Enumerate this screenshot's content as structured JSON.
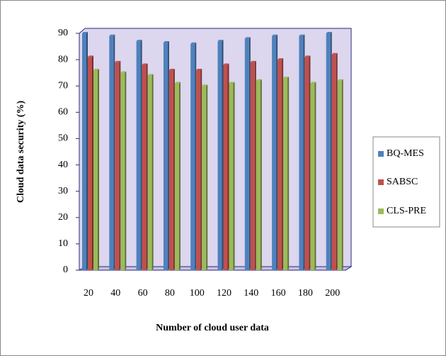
{
  "chart_data": {
    "type": "bar",
    "xlabel": "Number of cloud user data",
    "ylabel": "Cloud data security (%)",
    "categories": [
      "20",
      "40",
      "60",
      "80",
      "100",
      "120",
      "140",
      "160",
      "180",
      "200"
    ],
    "series": [
      {
        "name": "BQ-MES",
        "color": "#4f81bd",
        "values": [
          90,
          89,
          87,
          86.5,
          86,
          87,
          88,
          89,
          89,
          90
        ]
      },
      {
        "name": "SABSC",
        "color": "#c0504d",
        "values": [
          81,
          79,
          78,
          76,
          76,
          78,
          79,
          80,
          81,
          82
        ]
      },
      {
        "name": "CLS-PRE",
        "color": "#9bbb59",
        "values": [
          76,
          75,
          74,
          71,
          70,
          71,
          72,
          73,
          71,
          72
        ]
      }
    ],
    "ylim": [
      0,
      90
    ],
    "yticks": [
      0,
      10,
      20,
      30,
      40,
      50,
      60,
      70,
      80,
      90
    ],
    "legend": "right"
  }
}
